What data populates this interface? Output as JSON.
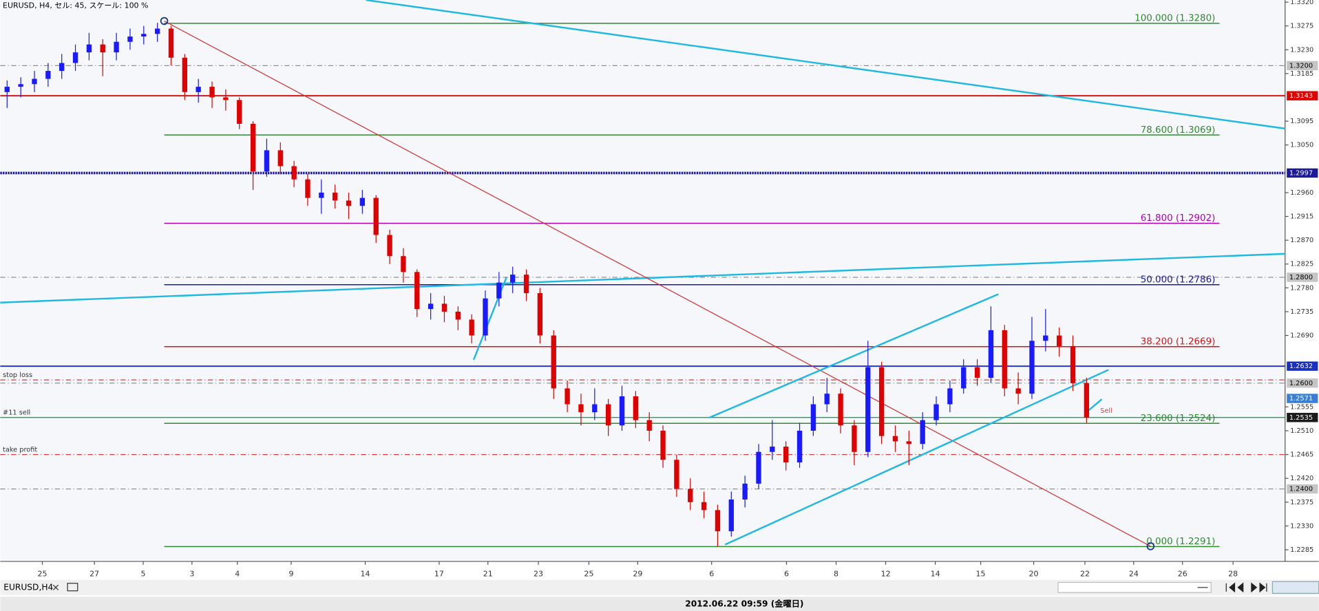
{
  "header": "EURUSD, H4, セル: 45, スケール: 100 %",
  "tabs": [
    "EURUSD,H4"
  ],
  "status": "2012.06.22 09:59 (金曜日)",
  "chart_data": {
    "type": "candlestick",
    "bull_color": "#1a1aff",
    "bear_color": "#e00000",
    "candles": [
      [
        1.315,
        1.3172,
        1.312,
        1.316
      ],
      [
        1.316,
        1.3178,
        1.314,
        1.3165
      ],
      [
        1.3165,
        1.319,
        1.315,
        1.3175
      ],
      [
        1.3175,
        1.3205,
        1.316,
        1.319
      ],
      [
        1.319,
        1.3222,
        1.3175,
        1.3205
      ],
      [
        1.3205,
        1.324,
        1.319,
        1.3225
      ],
      [
        1.3225,
        1.3262,
        1.321,
        1.324
      ],
      [
        1.324,
        1.325,
        1.318,
        1.3225
      ],
      [
        1.3225,
        1.3262,
        1.321,
        1.3245
      ],
      [
        1.3245,
        1.327,
        1.323,
        1.3255
      ],
      [
        1.3255,
        1.3275,
        1.324,
        1.326
      ],
      [
        1.326,
        1.3281,
        1.3245,
        1.327
      ],
      [
        1.327,
        1.3275,
        1.32,
        1.3215
      ],
      [
        1.3215,
        1.3222,
        1.3135,
        1.315
      ],
      [
        1.315,
        1.3175,
        1.313,
        1.316
      ],
      [
        1.316,
        1.317,
        1.312,
        1.314
      ],
      [
        1.314,
        1.3155,
        1.3115,
        1.3135
      ],
      [
        1.3135,
        1.314,
        1.308,
        1.309
      ],
      [
        1.309,
        1.3095,
        1.2965,
        1.3
      ],
      [
        1.3,
        1.3062,
        1.299,
        1.304
      ],
      [
        1.304,
        1.3055,
        1.2995,
        1.301
      ],
      [
        1.301,
        1.302,
        1.297,
        1.2985
      ],
      [
        1.2985,
        1.2995,
        1.2935,
        1.295
      ],
      [
        1.295,
        1.2985,
        1.292,
        1.296
      ],
      [
        1.296,
        1.2975,
        1.293,
        1.2945
      ],
      [
        1.2945,
        1.296,
        1.291,
        1.2935
      ],
      [
        1.2935,
        1.2965,
        1.292,
        1.295
      ],
      [
        1.295,
        1.2955,
        1.2865,
        1.288
      ],
      [
        1.288,
        1.289,
        1.2825,
        1.284
      ],
      [
        1.284,
        1.2855,
        1.279,
        1.281
      ],
      [
        1.281,
        1.2815,
        1.2725,
        1.274
      ],
      [
        1.274,
        1.277,
        1.272,
        1.275
      ],
      [
        1.275,
        1.2765,
        1.2715,
        1.2735
      ],
      [
        1.2735,
        1.2745,
        1.27,
        1.272
      ],
      [
        1.272,
        1.273,
        1.2675,
        1.269
      ],
      [
        1.269,
        1.2775,
        1.268,
        1.276
      ],
      [
        1.276,
        1.281,
        1.2745,
        1.279
      ],
      [
        1.279,
        1.282,
        1.277,
        1.2805
      ],
      [
        1.2805,
        1.2815,
        1.2755,
        1.277
      ],
      [
        1.277,
        1.278,
        1.2675,
        1.269
      ],
      [
        1.269,
        1.27,
        1.257,
        1.259
      ],
      [
        1.259,
        1.2605,
        1.2545,
        1.256
      ],
      [
        1.256,
        1.258,
        1.252,
        1.2545
      ],
      [
        1.2545,
        1.259,
        1.253,
        1.256
      ],
      [
        1.256,
        1.257,
        1.25,
        1.252
      ],
      [
        1.252,
        1.2595,
        1.251,
        1.2575
      ],
      [
        1.2575,
        1.2585,
        1.2515,
        1.253
      ],
      [
        1.253,
        1.2545,
        1.249,
        1.251
      ],
      [
        1.251,
        1.252,
        1.244,
        1.2455
      ],
      [
        1.2455,
        1.2465,
        1.2385,
        1.24
      ],
      [
        1.24,
        1.242,
        1.236,
        1.2375
      ],
      [
        1.2375,
        1.2395,
        1.2345,
        1.236
      ],
      [
        1.236,
        1.237,
        1.2291,
        1.232
      ],
      [
        1.232,
        1.2395,
        1.231,
        1.238
      ],
      [
        1.238,
        1.2425,
        1.2365,
        1.241
      ],
      [
        1.241,
        1.2485,
        1.24,
        1.247
      ],
      [
        1.247,
        1.253,
        1.2455,
        1.248
      ],
      [
        1.248,
        1.249,
        1.2435,
        1.245
      ],
      [
        1.245,
        1.2525,
        1.244,
        1.251
      ],
      [
        1.251,
        1.2575,
        1.25,
        1.256
      ],
      [
        1.256,
        1.261,
        1.2545,
        1.258
      ],
      [
        1.258,
        1.259,
        1.2505,
        1.252
      ],
      [
        1.252,
        1.253,
        1.2445,
        1.247
      ],
      [
        1.247,
        1.268,
        1.246,
        1.263
      ],
      [
        1.263,
        1.264,
        1.2485,
        1.25
      ],
      [
        1.25,
        1.252,
        1.247,
        1.249
      ],
      [
        1.249,
        1.251,
        1.2445,
        1.2485
      ],
      [
        1.2485,
        1.2545,
        1.2475,
        1.253
      ],
      [
        1.253,
        1.2575,
        1.252,
        1.256
      ],
      [
        1.256,
        1.2605,
        1.2545,
        1.259
      ],
      [
        1.259,
        1.2645,
        1.258,
        1.263
      ],
      [
        1.263,
        1.2645,
        1.2595,
        1.261
      ],
      [
        1.261,
        1.2745,
        1.26,
        1.27
      ],
      [
        1.27,
        1.271,
        1.2575,
        1.259
      ],
      [
        1.259,
        1.262,
        1.256,
        1.258
      ],
      [
        1.258,
        1.2725,
        1.257,
        1.268
      ],
      [
        1.268,
        1.274,
        1.266,
        1.269
      ],
      [
        1.269,
        1.2705,
        1.265,
        1.267
      ],
      [
        1.267,
        1.269,
        1.2585,
        1.26
      ],
      [
        1.26,
        1.261,
        1.2525,
        1.2535
      ]
    ],
    "xlim": [
      0,
      94.03
    ],
    "xticks": [
      {
        "value": 3.08,
        "label": "25"
      },
      {
        "value": 6.89,
        "label": "27"
      },
      {
        "value": 10.46,
        "label": "5"
      },
      {
        "value": 14.03,
        "label": "3"
      },
      {
        "value": 17.35,
        "label": "4"
      },
      {
        "value": 21.29,
        "label": "9"
      },
      {
        "value": 26.71,
        "label": "14"
      },
      {
        "value": 32.12,
        "label": "17"
      },
      {
        "value": 35.69,
        "label": "21"
      },
      {
        "value": 39.38,
        "label": "23"
      },
      {
        "value": 43.08,
        "label": "25"
      },
      {
        "value": 46.65,
        "label": "29"
      },
      {
        "value": 52.06,
        "label": "6"
      },
      {
        "value": 57.54,
        "label": "6"
      },
      {
        "value": 61.17,
        "label": "8"
      },
      {
        "value": 64.8,
        "label": "12"
      },
      {
        "value": 68.43,
        "label": "14"
      },
      {
        "value": 71.75,
        "label": "15"
      },
      {
        "value": 75.63,
        "label": "20"
      },
      {
        "value": 79.38,
        "label": "22"
      },
      {
        "value": 82.95,
        "label": "24"
      },
      {
        "value": 86.52,
        "label": "26"
      },
      {
        "value": 90.22,
        "label": "28"
      }
    ],
    "ylim": [
      1.2263,
      1.3324
    ],
    "yticks": [
      {
        "value": 1.332,
        "label": "1.3320"
      },
      1.3275,
      {
        "value": 1.323,
        "label": "1.3230"
      },
      1.3185,
      1.3095,
      {
        "value": 1.305,
        "label": "1.3050"
      },
      {
        "value": 1.296,
        "label": "1.2960"
      },
      1.2915,
      {
        "value": 1.287,
        "label": "1.2870"
      },
      1.2825,
      {
        "value": 1.278,
        "label": "1.2780"
      },
      1.2735,
      {
        "value": 1.269,
        "label": "1.2690"
      },
      1.2555,
      {
        "value": 1.251,
        "label": "1.2510"
      },
      1.2465,
      {
        "value": 1.242,
        "label": "1.2420"
      },
      1.2375,
      {
        "value": 1.233,
        "label": "1.2330"
      },
      1.2285
    ],
    "fib_levels": [
      {
        "label": "100.000 (1.3280)",
        "value": 1.328,
        "color": "#2e8b2e"
      },
      {
        "label": "78.600 (1.3069)",
        "value": 1.3069,
        "color": "#2e8b2e"
      },
      {
        "label": "61.800 (1.2902)",
        "value": 1.2902,
        "color": "#b000b0"
      },
      {
        "label": "50.000 (1.2786)",
        "value": 1.2786,
        "color": "#1a1aa0"
      },
      {
        "label": "38.200 (1.2669)",
        "value": 1.2669,
        "color": "#e01010"
      },
      {
        "label": "23.600 (1.2524)",
        "value": 1.2524,
        "color": "#2e8b2e"
      },
      {
        "label": "0.000 (1.2291)",
        "value": 1.2291,
        "color": "#2e8b2e"
      }
    ],
    "horizontal_lines": [
      {
        "value": 1.32,
        "color": "#909090",
        "style": "dashdot"
      },
      {
        "value": 1.28,
        "color": "#909090",
        "style": "dashdot"
      },
      {
        "value": 1.26,
        "color": "#909090",
        "style": "dashdot"
      },
      {
        "value": 1.24,
        "color": "#909090",
        "style": "dashdot"
      },
      {
        "value": 1.3143,
        "color": "#e00000",
        "style": "solid"
      },
      {
        "value": 1.2997,
        "color": "#1a1a9a",
        "style": "dotted"
      },
      {
        "value": 1.2632,
        "color": "#1a2fc0",
        "style": "solid"
      }
    ],
    "orders": [
      {
        "label": "stop loss",
        "value": 1.2606,
        "color": "#d04040",
        "style": "dashdot"
      },
      {
        "label": "#11 sell",
        "value": 1.2535,
        "color": "#3a7a5a",
        "style": "thin"
      },
      {
        "label": "take profit",
        "value": 1.2465,
        "color": "#d04040",
        "style": "dashdot"
      }
    ],
    "price_tags": [
      {
        "value": 1.32,
        "label": "1.3200",
        "color": "#c4c4c4",
        "text_color": "#000000"
      },
      {
        "value": 1.3143,
        "label": "1.3143",
        "color": "#e00000",
        "text_color": "#ffffff"
      },
      {
        "value": 1.2997,
        "label": "1.2997",
        "color": "#1a1a9a",
        "text_color": "#ffffff"
      },
      {
        "value": 1.28,
        "label": "1.2800",
        "color": "#c4c4c4",
        "text_color": "#000000"
      },
      {
        "value": 1.2632,
        "label": "1.2632",
        "color": "#1a2fc0",
        "text_color": "#ffffff"
      },
      {
        "value": 1.26,
        "label": "1.2600",
        "color": "#c4c4c4",
        "text_color": "#000000"
      },
      {
        "value": 1.2571,
        "label": "1.2571",
        "color": "#3a7fd5",
        "text_color": "#ffffff"
      },
      {
        "value": 1.2535,
        "label": "1.2535",
        "color": "#1a1a1a",
        "text_color": "#ffffff"
      },
      {
        "value": 1.24,
        "label": "1.2400",
        "color": "#c4c4c4",
        "text_color": "#000000"
      }
    ],
    "annotations": [
      {
        "text": "Sell",
        "x": 80.5,
        "value": 1.2548,
        "color": "#e04040"
      }
    ]
  }
}
